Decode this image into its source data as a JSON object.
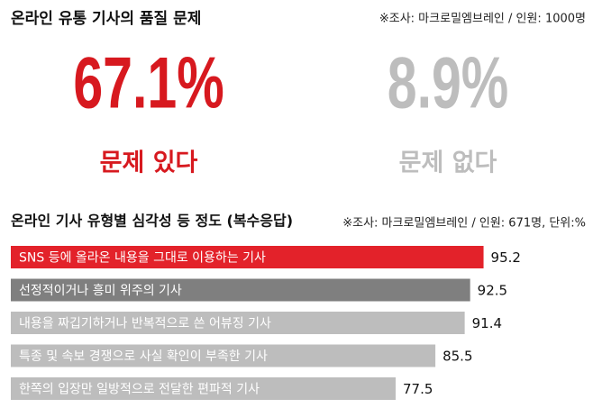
{
  "chart_data": [
    {
      "type": "stat",
      "title": "온라인 유통 기사의 품질 문제",
      "subtitle": "※조사: 마크로밀엠브레인 / 인원: 1000명",
      "categories": [
        "문제 있다",
        "문제 없다"
      ],
      "values": [
        67.1,
        8.9
      ],
      "value_labels": [
        "67.1%",
        "8.9%"
      ],
      "colors": [
        "#d7191f",
        "#bdbdbd"
      ]
    },
    {
      "type": "bar",
      "orientation": "horizontal",
      "title": "온라인 기사 유형별 심각성 등 정도 (복수응답)",
      "subtitle": "※조사: 마크로밀엠브레인 / 인원: 671명, 단위:%",
      "categories": [
        "SNS 등에 올라온 내용을 그대로 이용하는 기사",
        "선정적이거나 흥미 위주의 기사",
        "내용을 짜깁기하거나 반복적으로 쓴 어뷰징 기사",
        "특종 및 속보 경쟁으로 사실 확인이 부족한 기사",
        "한쪽의 입장만 일방적으로 전달한 편파적 기사"
      ],
      "values": [
        95.2,
        92.5,
        91.4,
        85.5,
        77.5
      ],
      "colors": [
        "#e3222a",
        "#7f7f7f",
        "#bdbdbd",
        "#bdbdbd",
        "#bdbdbd"
      ],
      "xlim": [
        0,
        100
      ]
    }
  ]
}
